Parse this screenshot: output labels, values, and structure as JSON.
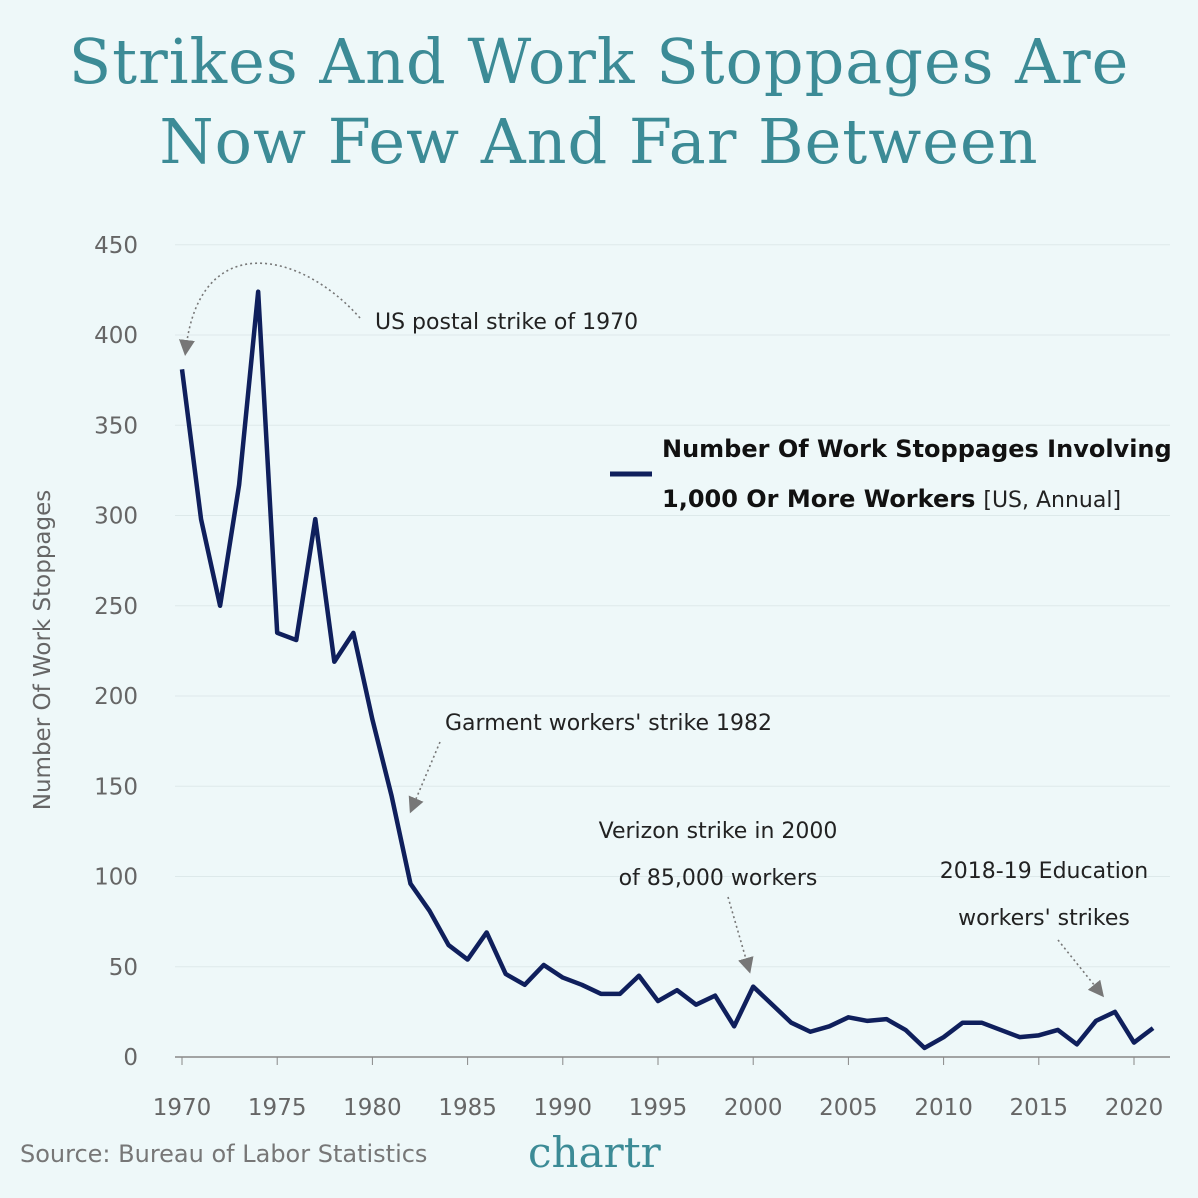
{
  "chart_data": {
    "type": "line",
    "title": "Strikes And Work Stoppages Are Now Few And Far Between",
    "ylabel": "Number Of Work Stoppages",
    "xlabel": "",
    "ylim": [
      0,
      450
    ],
    "xlim": [
      1970,
      2021
    ],
    "yticks": [
      0,
      50,
      100,
      150,
      200,
      250,
      300,
      350,
      400,
      450
    ],
    "xticks": [
      1970,
      1975,
      1980,
      1985,
      1990,
      1995,
      2000,
      2005,
      2010,
      2015,
      2020
    ],
    "grid": true,
    "legend_position": "right",
    "series": [
      {
        "name": "Number Of Work Stoppages Involving 1,000 Or More Workers",
        "name_suffix": "[US, Annual]",
        "color": "#0f1f5c",
        "x": [
          1970,
          1971,
          1972,
          1973,
          1974,
          1975,
          1976,
          1977,
          1978,
          1979,
          1980,
          1981,
          1982,
          1983,
          1984,
          1985,
          1986,
          1987,
          1988,
          1989,
          1990,
          1991,
          1992,
          1993,
          1994,
          1995,
          1996,
          1997,
          1998,
          1999,
          2000,
          2001,
          2002,
          2003,
          2004,
          2005,
          2006,
          2007,
          2008,
          2009,
          2010,
          2011,
          2012,
          2013,
          2014,
          2015,
          2016,
          2017,
          2018,
          2019,
          2020,
          2021
        ],
        "values": [
          381,
          298,
          250,
          317,
          424,
          235,
          231,
          298,
          219,
          235,
          187,
          145,
          96,
          81,
          62,
          54,
          69,
          46,
          40,
          51,
          44,
          40,
          35,
          35,
          45,
          31,
          37,
          29,
          34,
          17,
          39,
          29,
          19,
          14,
          17,
          22,
          20,
          21,
          15,
          5,
          11,
          19,
          19,
          15,
          11,
          12,
          15,
          7,
          20,
          25,
          8,
          16
        ]
      }
    ],
    "annotations": [
      {
        "lines": [
          "US postal strike of 1970"
        ],
        "x": 1970
      },
      {
        "lines": [
          "Garment workers' strike 1982"
        ],
        "x": 1982
      },
      {
        "lines": [
          "Verizon strike in 2000",
          "of 85,000 workers"
        ],
        "x": 2000
      },
      {
        "lines": [
          "2018-19 Education",
          "workers' strikes"
        ],
        "x": 2018
      }
    ]
  },
  "title_lines": [
    "Strikes And Work Stoppages Are",
    "Now Few And Far Between"
  ],
  "legend": {
    "line1": "Number Of Work Stoppages Involving",
    "line2": "1,000 Or More Workers",
    "suffix": "[US, Annual]"
  },
  "source": "Source: Bureau of Labor Statistics",
  "logo": "chartr",
  "colors": {
    "background": "#eef8f9",
    "title": "#3c8b96",
    "line": "#0f1f5c"
  }
}
